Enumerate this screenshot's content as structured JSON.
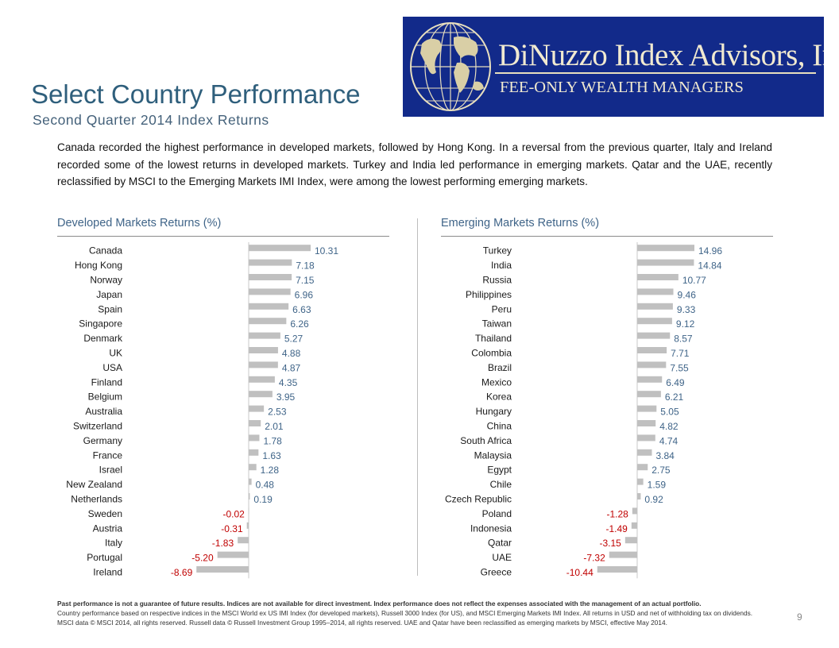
{
  "slide": {
    "title": "Select Country Performance",
    "subtitle": "Second Quarter 2014 Index Returns",
    "intro": "Canada recorded the highest performance in developed markets, followed by Hong Kong. In a reversal from the previous quarter, Italy and Ireland recorded some of the lowest returns in developed markets. Turkey and India led performance in emerging markets. Qatar and the UAE, recently reclassified by MSCI to the Emerging Markets IMI Index, were among the lowest performing emerging markets.",
    "page_number": "9"
  },
  "logo": {
    "name": "DiNuzzo Index Advisors, Inc.",
    "tagline": "FEE-ONLY WEALTH MANAGERS",
    "background": "#122a8a",
    "foreground": "#f1ead0"
  },
  "footer": {
    "disclaimer": "Past performance is not a guarantee of future results. Indices are not available for direct investment. Index performance does not reflect the expenses associated with the management of an actual portfolio.",
    "notes": "Country performance based on respective indices in the MSCI World ex US IMI Index (for developed markets), Russell 3000 Index (for US), and MSCI Emerging Markets IMI Index. All returns in USD and net of withholding tax on dividends. MSCI data © MSCI 2014, all rights reserved. Russell data © Russell Investment Group 1995–2014, all rights reserved. UAE and Qatar have been reclassified as emerging markets by MSCI, effective May 2014."
  },
  "colors": {
    "bar": "#c0c0c0",
    "positive_label": "#3f6488",
    "negative_label": "#c00000",
    "title": "#2f5f7c"
  },
  "chart_data": [
    {
      "type": "bar",
      "orientation": "horizontal",
      "title": "Developed Markets Returns (%)",
      "categories": [
        "Canada",
        "Hong Kong",
        "Norway",
        "Japan",
        "Spain",
        "Singapore",
        "Denmark",
        "UK",
        "USA",
        "Finland",
        "Belgium",
        "Australia",
        "Switzerland",
        "Germany",
        "France",
        "Israel",
        "New Zealand",
        "Netherlands",
        "Sweden",
        "Austria",
        "Italy",
        "Portugal",
        "Ireland"
      ],
      "values": [
        10.31,
        7.18,
        7.15,
        6.96,
        6.63,
        6.26,
        5.27,
        4.88,
        4.87,
        4.35,
        3.95,
        2.53,
        2.01,
        1.78,
        1.63,
        1.28,
        0.48,
        0.19,
        -0.02,
        -0.31,
        -1.83,
        -5.2,
        -8.69
      ],
      "labels": [
        "10.31",
        "7.18",
        "7.15",
        "6.96",
        "6.63",
        "6.26",
        "5.27",
        "4.88",
        "4.87",
        "4.35",
        "3.95",
        "2.53",
        "2.01",
        "1.78",
        "1.63",
        "1.28",
        "0.48",
        "0.19",
        "-0.02",
        "-0.31",
        "-1.83",
        "-5.20",
        "-8.69"
      ]
    },
    {
      "type": "bar",
      "orientation": "horizontal",
      "title": "Emerging Markets Returns (%)",
      "categories": [
        "Turkey",
        "India",
        "Russia",
        "Philippines",
        "Peru",
        "Taiwan",
        "Thailand",
        "Colombia",
        "Brazil",
        "Mexico",
        "Korea",
        "Hungary",
        "China",
        "South Africa",
        "Malaysia",
        "Egypt",
        "Chile",
        "Czech Republic",
        "Poland",
        "Indonesia",
        "Qatar",
        "UAE",
        "Greece"
      ],
      "values": [
        14.96,
        14.84,
        10.77,
        9.46,
        9.33,
        9.12,
        8.57,
        7.71,
        7.55,
        6.49,
        6.21,
        5.05,
        4.82,
        4.74,
        3.84,
        2.75,
        1.59,
        0.92,
        -1.28,
        -1.49,
        -3.15,
        -7.32,
        -10.44
      ],
      "labels": [
        "14.96",
        "14.84",
        "10.77",
        "9.46",
        "9.33",
        "9.12",
        "8.57",
        "7.71",
        "7.55",
        "6.49",
        "6.21",
        "5.05",
        "4.82",
        "4.74",
        "3.84",
        "2.75",
        "1.59",
        "0.92",
        "-1.28",
        "-1.49",
        "-3.15",
        "-7.32",
        "-10.44"
      ]
    }
  ]
}
